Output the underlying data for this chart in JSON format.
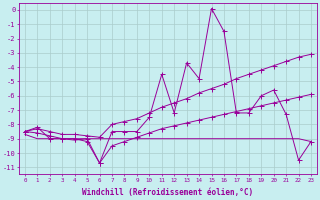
{
  "x": [
    0,
    1,
    2,
    3,
    4,
    5,
    6,
    7,
    8,
    9,
    10,
    11,
    12,
    13,
    14,
    15,
    16,
    17,
    18,
    19,
    20,
    21,
    22,
    23
  ],
  "line_zigzag": [
    -8.5,
    -8.2,
    -9.0,
    -9.0,
    -9.0,
    -9.2,
    -10.7,
    -8.5,
    -8.5,
    -8.5,
    -7.5,
    -4.5,
    -7.2,
    -3.7,
    -4.8,
    0.1,
    -1.5,
    -7.2,
    -7.2,
    -6.0,
    -5.6,
    -7.3,
    -10.5,
    -9.2
  ],
  "line_upper_trend": [
    -8.5,
    -8.3,
    -8.5,
    -8.7,
    -8.7,
    -8.8,
    -8.9,
    -8.0,
    -7.8,
    -7.6,
    -7.2,
    -6.8,
    -6.5,
    -6.2,
    -5.8,
    -5.5,
    -5.2,
    -4.8,
    -4.5,
    -4.2,
    -3.9,
    -3.6,
    -3.3,
    -3.1
  ],
  "line_lower_trend": [
    -8.5,
    -8.6,
    -8.8,
    -9.0,
    -9.0,
    -9.0,
    -10.7,
    -9.5,
    -9.2,
    -8.9,
    -8.6,
    -8.3,
    -8.1,
    -7.9,
    -7.7,
    -7.5,
    -7.3,
    -7.1,
    -6.9,
    -6.7,
    -6.5,
    -6.3,
    -6.1,
    -5.9
  ],
  "line_flat": [
    -8.7,
    -9.0,
    -9.0,
    -9.0,
    -9.1,
    -9.0,
    -9.0,
    -9.0,
    -9.0,
    -9.0,
    -9.0,
    -9.0,
    -9.0,
    -9.0,
    -9.0,
    -9.0,
    -9.0,
    -9.0,
    -9.0,
    -9.0,
    -9.0,
    -9.0,
    -9.0,
    -9.2
  ],
  "line_color": "#990099",
  "bg_color": "#c8eef0",
  "grid_color": "#aacccc",
  "yticks": [
    0,
    -1,
    -2,
    -3,
    -4,
    -5,
    -6,
    -7,
    -8,
    -9,
    -10,
    -11
  ],
  "xlabel": "Windchill (Refroidissement éolien,°C)",
  "ylim": [
    -11.5,
    0.5
  ],
  "xlim": [
    -0.5,
    23.5
  ]
}
